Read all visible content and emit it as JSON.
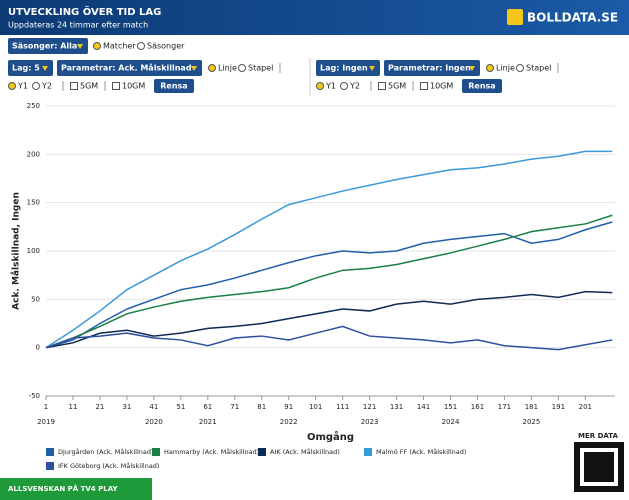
{
  "header": {
    "title": "UTVECKLING ÖVER TID LAG",
    "subtitle": "Uppdateras 24 timmar efter match",
    "logo": "BOLLDATA.SE"
  },
  "controls": {
    "season": "Säsonger: Alla",
    "radio": [
      "Matcher",
      "Säsonger"
    ],
    "radio_selected": 0,
    "left": {
      "team": "Lag: 5",
      "param": "Parametrar: Ack. Målskillnad",
      "chart_types": [
        "Linje",
        "Stapel"
      ],
      "axes": [
        "Y1",
        "Y2"
      ],
      "checks": [
        "5GM",
        "10GM"
      ],
      "button": "Rensa"
    },
    "right": {
      "team": "Lag: Ingen",
      "param": "Parametrar: Ingen",
      "chart_types": [
        "Linje",
        "Stapel"
      ],
      "axes": [
        "Y1",
        "Y2"
      ],
      "checks": [
        "5GM",
        "10GM"
      ],
      "button": "Rensa"
    }
  },
  "chart_data": {
    "type": "line",
    "y_label": "Ack. Målskillnad, Ingen",
    "x_label": "Omgång",
    "xlim": [
      1,
      212
    ],
    "ylim": [
      -50,
      250
    ],
    "xticks": [
      1,
      11,
      21,
      31,
      41,
      51,
      61,
      71,
      81,
      91,
      101,
      111,
      121,
      131,
      141,
      151,
      161,
      171,
      181,
      191,
      201
    ],
    "yticks": [
      -50,
      0,
      50,
      100,
      150,
      200,
      250
    ],
    "grid": true,
    "year_labels": {
      "x": [
        1,
        41,
        61,
        91,
        121,
        151,
        181
      ],
      "labels": [
        "2019",
        "2020",
        "2021",
        "2022",
        "2023",
        "2024",
        "2025"
      ]
    },
    "x": [
      1,
      11,
      21,
      31,
      41,
      51,
      61,
      71,
      81,
      91,
      101,
      111,
      121,
      131,
      141,
      151,
      161,
      171,
      181,
      191,
      201,
      211
    ],
    "series": [
      {
        "name": "Djurgården (Ack. Målskillnad)",
        "color": "#1f5fa8",
        "values": [
          0,
          8,
          25,
          40,
          50,
          60,
          65,
          72,
          80,
          88,
          95,
          100,
          98,
          100,
          108,
          112,
          115,
          118,
          108,
          112,
          122,
          130
        ]
      },
      {
        "name": "Hammarby (Ack. Målskillnad)",
        "color": "#1a7f45",
        "values": [
          0,
          10,
          22,
          35,
          42,
          48,
          52,
          55,
          58,
          62,
          72,
          80,
          82,
          86,
          92,
          98,
          105,
          112,
          120,
          124,
          128,
          137
        ]
      },
      {
        "name": "AIK (Ack. Målskillnad)",
        "color": "#0f2a55",
        "values": [
          0,
          5,
          15,
          18,
          12,
          15,
          20,
          22,
          25,
          30,
          35,
          40,
          38,
          45,
          48,
          45,
          50,
          52,
          55,
          52,
          58,
          57
        ]
      },
      {
        "name": "Malmö FF (Ack. Målskillnad)",
        "color": "#3a9ad9",
        "values": [
          0,
          18,
          38,
          60,
          75,
          90,
          102,
          117,
          133,
          148,
          155,
          162,
          168,
          174,
          179,
          184,
          186,
          190,
          195,
          198,
          203,
          203
        ]
      },
      {
        "name": "IFK Göteborg (Ack. Målskillnad)",
        "color": "#2d4f9e",
        "values": [
          0,
          10,
          12,
          15,
          10,
          8,
          2,
          10,
          12,
          8,
          15,
          22,
          12,
          10,
          8,
          5,
          8,
          2,
          0,
          -2,
          3,
          8
        ]
      }
    ]
  },
  "footer": {
    "banner": "ALLSVENSKAN PÅ TV4 PLAY",
    "more": "MER DATA"
  }
}
